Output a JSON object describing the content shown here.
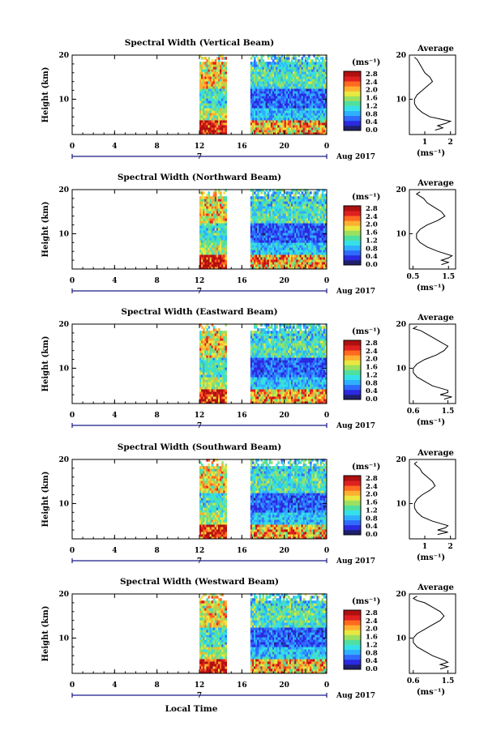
{
  "figure": {
    "time_axis_label": "Local Time",
    "date_label": "Aug 2017",
    "day_label": "7",
    "colorbar_unit": "(ms⁻¹)",
    "colorbar_ticks": [
      "2.8",
      "2.4",
      "2.0",
      "1.6",
      "1.2",
      "0.8",
      "0.4",
      "0.0"
    ],
    "colormap": [
      "#1f1f6b",
      "#2a2ae0",
      "#2f6bff",
      "#2fb0ff",
      "#35e0e8",
      "#4fe0a0",
      "#9be060",
      "#e8e840",
      "#ffb030",
      "#ff6a20",
      "#e02020",
      "#b01010"
    ],
    "avg_title": "Average",
    "avg_xlabel": "(ms⁻¹)"
  },
  "chart_data": [
    {
      "type": "heatmap",
      "title": "Spectral Width (Vertical Beam)",
      "ylabel": "Height (km)",
      "xlabel": "Local Time",
      "x_ticks": [
        "0",
        "4",
        "8",
        "12",
        "16",
        "20",
        "0"
      ],
      "y_ticks": [
        "20",
        "10"
      ],
      "xlim": [
        0,
        24
      ],
      "ylim": [
        2,
        20
      ],
      "data_x_ranges": [
        [
          12,
          14.5
        ],
        [
          16.8,
          24
        ]
      ],
      "z_range": [
        0.0,
        2.8
      ],
      "z_unit": "ms⁻¹",
      "average_profile": {
        "x_ticks": [
          "1",
          "2"
        ],
        "xlim": [
          0.4,
          2.2
        ],
        "y_ticks": [
          "20",
          "10"
        ],
        "height": [
          3,
          3.5,
          4,
          4.5,
          5,
          5.5,
          6,
          7,
          8,
          9,
          10,
          11,
          12,
          13,
          14,
          15,
          16,
          17,
          18,
          19,
          19.5
        ],
        "value": [
          1.4,
          1.7,
          1.5,
          1.8,
          2.0,
          1.6,
          1.2,
          0.9,
          0.7,
          0.6,
          0.6,
          0.7,
          0.9,
          1.1,
          1.3,
          1.2,
          1.0,
          0.9,
          0.8,
          0.7,
          0.6
        ]
      }
    },
    {
      "type": "heatmap",
      "title": "Spectral Width (Northward Beam)",
      "ylabel": "Height (km)",
      "xlabel": "Local Time",
      "x_ticks": [
        "0",
        "4",
        "8",
        "12",
        "16",
        "20",
        "0"
      ],
      "y_ticks": [
        "20",
        "10"
      ],
      "xlim": [
        0,
        24
      ],
      "ylim": [
        2,
        20
      ],
      "data_x_ranges": [
        [
          12,
          14.5
        ],
        [
          16.8,
          24
        ]
      ],
      "z_range": [
        0.0,
        2.8
      ],
      "z_unit": "ms⁻¹",
      "average_profile": {
        "x_ticks": [
          "0.5",
          "1.5"
        ],
        "xlim": [
          0.4,
          1.7
        ],
        "y_ticks": [
          "20",
          "10"
        ],
        "height": [
          3,
          3.5,
          4,
          4.5,
          5,
          6,
          7,
          8,
          9,
          10,
          11,
          12,
          13,
          14,
          15,
          16,
          17,
          18,
          18.5,
          19,
          19.5
        ],
        "value": [
          1.3,
          1.5,
          1.3,
          1.5,
          1.6,
          1.2,
          0.9,
          0.7,
          0.6,
          0.6,
          0.7,
          0.9,
          1.2,
          1.4,
          1.3,
          1.1,
          0.9,
          0.8,
          0.7,
          0.6,
          0.7
        ]
      }
    },
    {
      "type": "heatmap",
      "title": "Spectral Width (Eastward Beam)",
      "ylabel": "Height (km)",
      "xlabel": "Local Time",
      "x_ticks": [
        "0",
        "4",
        "8",
        "12",
        "16",
        "20",
        "0"
      ],
      "y_ticks": [
        "20",
        "10"
      ],
      "xlim": [
        0,
        24
      ],
      "ylim": [
        2,
        20
      ],
      "data_x_ranges": [
        [
          12,
          14.5
        ],
        [
          16.8,
          24
        ]
      ],
      "z_range": [
        0.0,
        2.8
      ],
      "z_unit": "ms⁻¹",
      "average_profile": {
        "x_ticks": [
          "0.6",
          "1.5"
        ],
        "xlim": [
          0.5,
          1.7
        ],
        "y_ticks": [
          "20",
          "10"
        ],
        "height": [
          3,
          3.5,
          4,
          4.5,
          5,
          6,
          7,
          8,
          9,
          10,
          11,
          12,
          13,
          14,
          15,
          16,
          17,
          18,
          18.5,
          19,
          19.5
        ],
        "value": [
          1.4,
          1.6,
          1.3,
          1.5,
          1.5,
          1.1,
          0.9,
          0.7,
          0.6,
          0.6,
          0.7,
          0.9,
          1.2,
          1.4,
          1.5,
          1.3,
          1.1,
          0.9,
          0.8,
          0.6,
          0.7
        ]
      }
    },
    {
      "type": "heatmap",
      "title": "Spectral Width (Southward Beam)",
      "ylabel": "Height (km)",
      "xlabel": "Local Time",
      "x_ticks": [
        "0",
        "4",
        "8",
        "12",
        "16",
        "20",
        "0"
      ],
      "y_ticks": [
        "20",
        "10"
      ],
      "xlim": [
        0,
        24
      ],
      "ylim": [
        2,
        20
      ],
      "data_x_ranges": [
        [
          12,
          14.5
        ],
        [
          16.8,
          24
        ]
      ],
      "z_range": [
        0.0,
        2.8
      ],
      "z_unit": "ms⁻¹",
      "average_profile": {
        "x_ticks": [
          "1",
          "2"
        ],
        "xlim": [
          0.4,
          2.2
        ],
        "y_ticks": [
          "20",
          "10"
        ],
        "height": [
          3,
          3.5,
          4,
          4.5,
          5,
          6,
          7,
          8,
          9,
          10,
          11,
          12,
          13,
          14,
          15,
          16,
          17,
          18,
          18.5,
          19,
          19.5
        ],
        "value": [
          1.5,
          1.9,
          1.5,
          1.8,
          1.9,
          1.3,
          0.9,
          0.7,
          0.6,
          0.6,
          0.7,
          0.9,
          1.2,
          1.4,
          1.3,
          1.1,
          0.9,
          0.8,
          0.7,
          0.6,
          0.7
        ]
      }
    },
    {
      "type": "heatmap",
      "title": "Spectral Width (Westward Beam)",
      "ylabel": "Height (km)",
      "xlabel": "Local Time",
      "x_ticks": [
        "0",
        "4",
        "8",
        "12",
        "16",
        "20",
        "0"
      ],
      "y_ticks": [
        "20",
        "10"
      ],
      "xlim": [
        0,
        24
      ],
      "ylim": [
        2,
        20
      ],
      "data_x_ranges": [
        [
          12,
          14.5
        ],
        [
          16.8,
          24
        ]
      ],
      "z_range": [
        0.0,
        2.8
      ],
      "z_unit": "ms⁻¹",
      "average_profile": {
        "x_ticks": [
          "0.6",
          "1.5"
        ],
        "xlim": [
          0.5,
          1.7
        ],
        "y_ticks": [
          "20",
          "10"
        ],
        "height": [
          3,
          3.5,
          4,
          4.5,
          5,
          6,
          7,
          8,
          9,
          10,
          11,
          12,
          13,
          14,
          15,
          16,
          17,
          18,
          18.5,
          19,
          19.5
        ],
        "value": [
          1.3,
          1.5,
          1.3,
          1.5,
          1.4,
          1.1,
          0.9,
          0.7,
          0.6,
          0.6,
          0.7,
          0.9,
          1.1,
          1.3,
          1.4,
          1.3,
          1.1,
          0.9,
          0.7,
          0.6,
          0.7
        ]
      }
    }
  ]
}
